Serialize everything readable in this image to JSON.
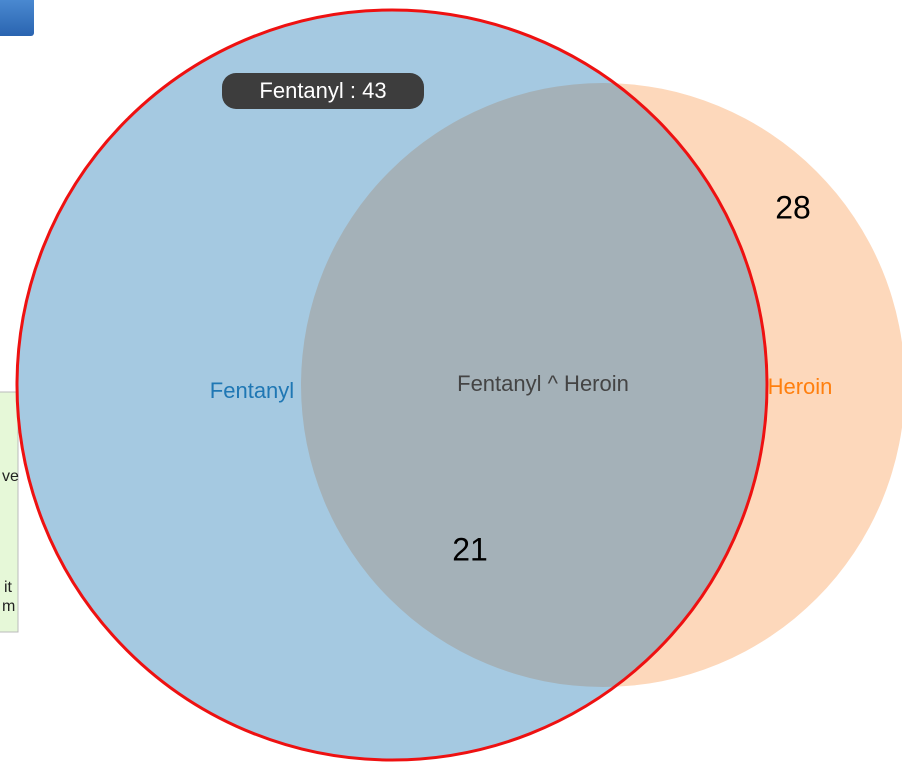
{
  "diagram": {
    "sets": [
      {
        "label": "Fentanyl",
        "color": "#1f77b4"
      },
      {
        "label": "Heroin",
        "color": "#ff7f0e"
      }
    ],
    "intersection_label": "Fentanyl ^ Heroin",
    "tooltip": "Fentanyl : 43",
    "annotations": [
      "28",
      "21"
    ],
    "side_panel_fragments": [
      "ve",
      "it",
      "m"
    ]
  }
}
